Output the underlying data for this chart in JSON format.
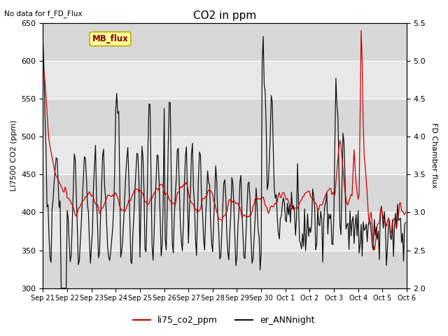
{
  "title": "CO2 in ppm",
  "top_left_text": "No data for f_FD_Flux",
  "ylabel_left": "LI7500 CO2 (ppm)",
  "ylabel_right": "FD Chamber flux",
  "ylim_left": [
    300,
    650
  ],
  "ylim_right": [
    2.0,
    5.5
  ],
  "yticks_left": [
    300,
    350,
    400,
    450,
    500,
    550,
    600,
    650
  ],
  "yticks_right": [
    2.0,
    2.5,
    3.0,
    3.5,
    4.0,
    4.5,
    5.0,
    5.5
  ],
  "legend_labels": [
    "li75_co2_ppm",
    "er_ANNnight"
  ],
  "legend_colors": [
    "#cc0000",
    "#111111"
  ],
  "box_label": "MB_flux",
  "box_color": "#ffff99",
  "box_edge_color": "#bbaa00",
  "line_color_red": "#cc0000",
  "line_color_black": "#111111",
  "plot_bg_color": "#d8d8d8",
  "band_light_color": "#e8e8e8",
  "xlabel_dates": [
    "Sep 21",
    "Sep 22",
    "Sep 23",
    "Sep 24",
    "Sep 25",
    "Sep 26",
    "Sep 27",
    "Sep 28",
    "Sep 29",
    "Sep 30",
    "Oct 1",
    "Oct 2",
    "Oct 3",
    "Oct 4",
    "Oct 5",
    "Oct 6"
  ],
  "figsize": [
    6.4,
    4.8
  ],
  "dpi": 100
}
